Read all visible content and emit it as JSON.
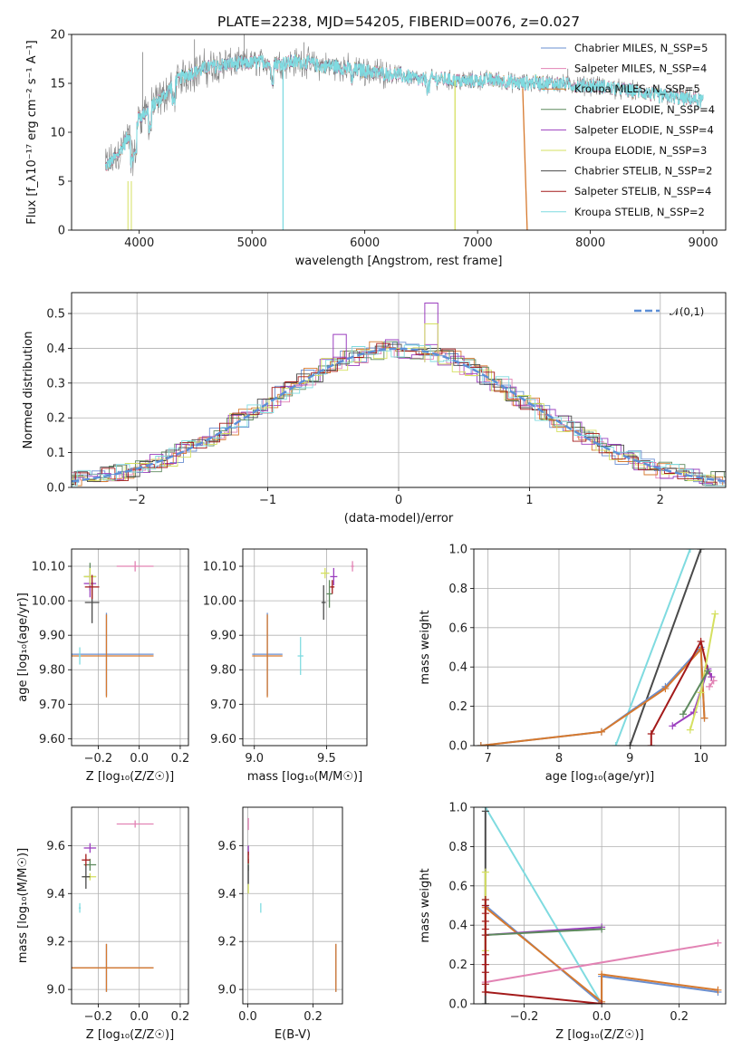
{
  "colors": [
    "#6a8fd0",
    "#e283b4",
    "#d6792e",
    "#5e8a5e",
    "#9b3fbf",
    "#d5e060",
    "#4a4a4a",
    "#a31a1a",
    "#7fdbe0",
    "#888888",
    "#5b8ed6"
  ],
  "chart_data": [
    {
      "id": "spectrum",
      "type": "line",
      "title": "PLATE=2238, MJD=54205, FIBERID=0076, z=0.027",
      "xlabel": "wavelength [Angstrom, rest frame]",
      "ylabel": "Flux [f_λ10⁻¹⁷ erg cm⁻² s⁻¹ A⁻¹]",
      "xlim": [
        3400,
        9200
      ],
      "ylim": [
        0,
        20
      ],
      "xticks": [
        4000,
        5000,
        6000,
        7000,
        8000,
        9000
      ],
      "yticks": [
        0,
        5,
        10,
        15,
        20
      ],
      "legend_position": "top-right",
      "legend": [
        "Chabrier MILES, N_SSP=5",
        "Salpeter MILES, N_SSP=4",
        "Kroupa MILES, N_SSP=5",
        "Chabrier ELODIE, N_SSP=4",
        "Salpeter ELODIE, N_SSP=4",
        "Kroupa ELODIE, N_SSP=3",
        "Chabrier STELIB, N_SSP=2",
        "Salpeter STELIB, N_SSP=4",
        "Kroupa STELIB, N_SSP=2"
      ],
      "continuum": [
        [
          3700,
          6.5
        ],
        [
          3800,
          7.5
        ],
        [
          3900,
          9.5
        ],
        [
          4000,
          11.5
        ],
        [
          4100,
          12.5
        ],
        [
          4200,
          13.5
        ],
        [
          4300,
          15
        ],
        [
          4400,
          15.8
        ],
        [
          4500,
          16.2
        ],
        [
          4600,
          16.6
        ],
        [
          4700,
          16.8
        ],
        [
          4800,
          17
        ],
        [
          4900,
          17
        ],
        [
          5000,
          17.1
        ],
        [
          5100,
          17.2
        ],
        [
          5200,
          17
        ],
        [
          5300,
          17.1
        ],
        [
          5400,
          17.2
        ],
        [
          5500,
          17.1
        ],
        [
          5600,
          16.8
        ],
        [
          5700,
          16.8
        ],
        [
          5800,
          16.6
        ],
        [
          5900,
          16.4
        ],
        [
          6000,
          16.3
        ],
        [
          6100,
          16.1
        ],
        [
          6200,
          16
        ],
        [
          6300,
          15.9
        ],
        [
          6400,
          15.6
        ],
        [
          6500,
          15.3
        ],
        [
          6600,
          15.5
        ],
        [
          6700,
          15.4
        ],
        [
          6800,
          15.3
        ],
        [
          6900,
          15.2
        ],
        [
          7000,
          15.3
        ],
        [
          7100,
          15.4
        ],
        [
          7200,
          15.3
        ],
        [
          7300,
          15.1
        ],
        [
          7400,
          15
        ],
        [
          7500,
          15.1
        ],
        [
          7600,
          15
        ],
        [
          7700,
          15
        ],
        [
          7800,
          14.9
        ],
        [
          7900,
          14.8
        ],
        [
          8000,
          14.8
        ],
        [
          8100,
          14.7
        ],
        [
          8200,
          14.5
        ],
        [
          8300,
          14.3
        ],
        [
          8400,
          14.2
        ],
        [
          8500,
          14
        ],
        [
          8600,
          13.7
        ],
        [
          8700,
          13.7
        ],
        [
          8800,
          13.5
        ],
        [
          8900,
          13.4
        ],
        [
          9000,
          13.2
        ]
      ]
    },
    {
      "id": "residuals",
      "type": "step",
      "xlabel": "(data-model)/error",
      "ylabel": "Normed distribution",
      "xlim": [
        -2.5,
        2.5
      ],
      "ylim": [
        0,
        0.56
      ],
      "xticks": [
        -2,
        -1,
        0,
        1,
        2
      ],
      "yticks": [
        0.0,
        0.1,
        0.2,
        0.3,
        0.4,
        0.5
      ],
      "legend_position": "top-right",
      "legend": [
        "𝒩(0,1)"
      ],
      "notable_bins": [
        {
          "x": 0.25,
          "y": 0.53
        },
        {
          "x": 0.25,
          "y": 0.47
        },
        {
          "x": -0.45,
          "y": 0.44
        }
      ]
    },
    {
      "id": "z-age",
      "type": "errorbar",
      "xlabel": "Z [log₁₀(Z/Z☉)]",
      "ylabel": "age  [log₁₀(age/yr)]",
      "xlim": [
        -0.33,
        0.24
      ],
      "ylim": [
        9.58,
        10.15
      ],
      "xticks": [
        -0.2,
        0.0,
        0.2
      ],
      "yticks": [
        9.6,
        9.7,
        9.8,
        9.9,
        10.0,
        10.1
      ],
      "points": [
        {
          "c": 0,
          "x": -0.16,
          "y": 9.845,
          "xe": 0.46,
          "ye": 0.24
        },
        {
          "c": 2,
          "x": -0.16,
          "y": 9.84,
          "xe": 0.46,
          "ye": 0.24
        },
        {
          "c": 1,
          "x": -0.02,
          "y": 10.1,
          "xe": 0.18,
          "ye": 0.03
        },
        {
          "c": 3,
          "x": -0.24,
          "y": 10.07,
          "xe": 0.06,
          "ye": 0.08
        },
        {
          "c": 4,
          "x": -0.24,
          "y": 10.05,
          "xe": 0.06,
          "ye": 0.08
        },
        {
          "c": 5,
          "x": -0.24,
          "y": 10.07,
          "xe": 0.06,
          "ye": 0.05
        },
        {
          "c": 6,
          "x": -0.23,
          "y": 9.995,
          "xe": 0.07,
          "ye": 0.12
        },
        {
          "c": 7,
          "x": -0.23,
          "y": 10.04,
          "xe": 0.07,
          "ye": 0.07
        },
        {
          "c": 8,
          "x": -0.29,
          "y": 9.84,
          "xe": 0.01,
          "ye": 0.05
        }
      ]
    },
    {
      "id": "mass-age",
      "type": "errorbar",
      "xlabel": "mass [log₁₀(M/M☉)]",
      "ylabel": "",
      "xlim": [
        8.92,
        9.78
      ],
      "ylim": [
        9.58,
        10.15
      ],
      "xticks": [
        9.0,
        9.5
      ],
      "yticks": [
        9.6,
        9.7,
        9.8,
        9.9,
        10.0,
        10.1
      ],
      "points": [
        {
          "c": 0,
          "x": 9.09,
          "y": 9.845,
          "xe": 0.21,
          "ye": 0.24
        },
        {
          "c": 2,
          "x": 9.09,
          "y": 9.84,
          "xe": 0.21,
          "ye": 0.24
        },
        {
          "c": 1,
          "x": 9.68,
          "y": 10.1,
          "xe": 0.02,
          "ye": 0.03
        },
        {
          "c": 3,
          "x": 9.52,
          "y": 10.02,
          "xe": 0.04,
          "ye": 0.08
        },
        {
          "c": 4,
          "x": 9.55,
          "y": 10.07,
          "xe": 0.05,
          "ye": 0.05
        },
        {
          "c": 5,
          "x": 9.49,
          "y": 10.08,
          "xe": 0.06,
          "ye": 0.03
        },
        {
          "c": 6,
          "x": 9.48,
          "y": 9.995,
          "xe": 0.03,
          "ye": 0.1
        },
        {
          "c": 7,
          "x": 9.54,
          "y": 10.04,
          "xe": 0.03,
          "ye": 0.04
        },
        {
          "c": 8,
          "x": 9.32,
          "y": 9.84,
          "xe": 0.04,
          "ye": 0.11
        }
      ]
    },
    {
      "id": "age-weight",
      "type": "line",
      "xlabel": "age  [log₁₀(age/yr)]",
      "ylabel": "mass weight",
      "xlim": [
        6.8,
        10.35
      ],
      "ylim": [
        0,
        1
      ],
      "xticks": [
        7,
        8,
        9,
        10
      ],
      "yticks": [
        0.0,
        0.2,
        0.4,
        0.6,
        0.8,
        1.0
      ],
      "series": [
        {
          "c": 8,
          "points": [
            [
              8.8,
              0
            ],
            [
              9.85,
              1.0
            ]
          ]
        },
        {
          "c": 6,
          "points": [
            [
              9.0,
              0
            ],
            [
              10.0,
              1.0
            ]
          ]
        },
        {
          "c": 0,
          "points": [
            [
              6.9,
              0
            ],
            [
              8.6,
              0.07
            ],
            [
              9.5,
              0.3
            ],
            [
              10.0,
              0.5
            ],
            [
              10.05,
              0.14
            ]
          ]
        },
        {
          "c": 2,
          "points": [
            [
              6.9,
              0
            ],
            [
              8.6,
              0.07
            ],
            [
              9.5,
              0.29
            ],
            [
              10.0,
              0.49
            ],
            [
              10.05,
              0.14
            ]
          ]
        },
        {
          "c": 7,
          "points": [
            [
              9.3,
              0
            ],
            [
              9.3,
              0.06
            ],
            [
              10.0,
              0.53
            ],
            [
              10.1,
              0.38
            ],
            [
              10.15,
              0.35
            ]
          ]
        },
        {
          "c": 4,
          "points": [
            [
              9.6,
              0.1
            ],
            [
              9.9,
              0.17
            ],
            [
              10.1,
              0.39
            ],
            [
              10.15,
              0.35
            ]
          ]
        },
        {
          "c": 5,
          "points": [
            [
              9.85,
              0.08
            ],
            [
              10.0,
              0.27
            ],
            [
              10.2,
              0.67
            ]
          ]
        },
        {
          "c": 3,
          "points": [
            [
              9.75,
              0.16
            ],
            [
              10.1,
              0.38
            ]
          ]
        },
        {
          "c": 1,
          "points": [
            [
              10.12,
              0.3
            ],
            [
              10.18,
              0.33
            ]
          ]
        }
      ]
    },
    {
      "id": "z-mass",
      "type": "errorbar",
      "xlabel": "Z [log₁₀(Z/Z☉)]",
      "ylabel": "mass [log₁₀(M/M☉)]",
      "xlim": [
        -0.33,
        0.24
      ],
      "ylim": [
        8.94,
        9.76
      ],
      "xticks": [
        -0.2,
        0.0,
        0.2
      ],
      "yticks": [
        9.0,
        9.2,
        9.4,
        9.6
      ],
      "points": [
        {
          "c": 0,
          "x": -0.16,
          "y": 9.09,
          "xe": 0.46,
          "ye": 0.2
        },
        {
          "c": 2,
          "x": -0.16,
          "y": 9.09,
          "xe": 0.46,
          "ye": 0.2
        },
        {
          "c": 1,
          "x": -0.02,
          "y": 9.69,
          "xe": 0.18,
          "ye": 0.03
        },
        {
          "c": 3,
          "x": -0.24,
          "y": 9.52,
          "xe": 0.06,
          "ye": 0.05
        },
        {
          "c": 4,
          "x": -0.24,
          "y": 9.59,
          "xe": 0.06,
          "ye": 0.04
        },
        {
          "c": 5,
          "x": -0.24,
          "y": 9.47,
          "xe": 0.06,
          "ye": 0.03
        },
        {
          "c": 6,
          "x": -0.26,
          "y": 9.47,
          "xe": 0.04,
          "ye": 0.1
        },
        {
          "c": 7,
          "x": -0.26,
          "y": 9.54,
          "xe": 0.04,
          "ye": 0.05
        },
        {
          "c": 8,
          "x": -0.29,
          "y": 9.34,
          "xe": 0.01,
          "ye": 0.04
        }
      ]
    },
    {
      "id": "ebv-mass",
      "type": "errorbar",
      "xlabel": "E(B-V)",
      "ylabel": "",
      "xlim": [
        -0.015,
        0.29
      ],
      "ylim": [
        8.94,
        9.76
      ],
      "xticks": [
        0.0,
        0.2
      ],
      "yticks": [
        9.0,
        9.2,
        9.4,
        9.6
      ],
      "points": [
        {
          "c": 0,
          "x": 0.27,
          "y": 9.09,
          "xe": 0.0,
          "ye": 0.2
        },
        {
          "c": 2,
          "x": 0.27,
          "y": 9.09,
          "xe": 0.0,
          "ye": 0.2
        },
        {
          "c": 1,
          "x": 0.002,
          "y": 9.69,
          "xe": 0.0,
          "ye": 0.05
        },
        {
          "c": 3,
          "x": 0.002,
          "y": 9.52,
          "xe": 0.0,
          "ye": 0.05
        },
        {
          "c": 4,
          "x": 0.002,
          "y": 9.58,
          "xe": 0.0,
          "ye": 0.04
        },
        {
          "c": 5,
          "x": 0.002,
          "y": 9.42,
          "xe": 0.0,
          "ye": 0.04
        },
        {
          "c": 6,
          "x": 0.002,
          "y": 9.48,
          "xe": 0.0,
          "ye": 0.08
        },
        {
          "c": 7,
          "x": 0.002,
          "y": 9.55,
          "xe": 0.0,
          "ye": 0.05
        },
        {
          "c": 8,
          "x": 0.04,
          "y": 9.34,
          "xe": 0.0,
          "ye": 0.04
        }
      ]
    },
    {
      "id": "z-weight",
      "type": "line",
      "xlabel": "Z [log₁₀(Z/Z☉)]",
      "ylabel": "mass weight",
      "xlim": [
        -0.33,
        0.32
      ],
      "ylim": [
        0,
        1
      ],
      "xticks": [
        -0.2,
        0.0,
        0.2
      ],
      "yticks": [
        0.0,
        0.2,
        0.4,
        0.6,
        0.8,
        1.0
      ],
      "series": [
        {
          "c": 8,
          "points": [
            [
              -0.3,
              1.0
            ],
            [
              0.0,
              0
            ]
          ]
        },
        {
          "c": 6,
          "points": [
            [
              -0.3,
              0
            ],
            [
              -0.3,
              0.98
            ]
          ]
        },
        {
          "c": 5,
          "points": [
            [
              -0.3,
              0.67
            ],
            [
              -0.3,
              0.27
            ]
          ]
        },
        {
          "c": 0,
          "points": [
            [
              -0.3,
              0.5
            ],
            [
              0.0,
              0
            ],
            [
              0.0,
              0.14
            ],
            [
              0.3,
              0.06
            ]
          ]
        },
        {
          "c": 2,
          "points": [
            [
              -0.3,
              0.49
            ],
            [
              0.0,
              0.01
            ],
            [
              0.0,
              0.15
            ],
            [
              0.3,
              0.07
            ]
          ]
        },
        {
          "c": 4,
          "points": [
            [
              -0.3,
              0.35
            ],
            [
              0.0,
              0.39
            ]
          ]
        },
        {
          "c": 3,
          "points": [
            [
              -0.3,
              0.35
            ],
            [
              0.0,
              0.38
            ]
          ]
        },
        {
          "c": 1,
          "points": [
            [
              -0.3,
              0.11
            ],
            [
              0.3,
              0.31
            ]
          ]
        },
        {
          "c": 7,
          "points": [
            [
              -0.3,
              0.53
            ],
            [
              -0.3,
              0.06
            ],
            [
              0.0,
              0.0
            ]
          ]
        }
      ],
      "extra_markers": [
        {
          "c": 7,
          "x": -0.3,
          "ys": [
            0.1,
            0.16,
            0.2,
            0.25,
            0.35,
            0.38,
            0.42,
            0.46,
            0.5
          ]
        }
      ]
    }
  ]
}
